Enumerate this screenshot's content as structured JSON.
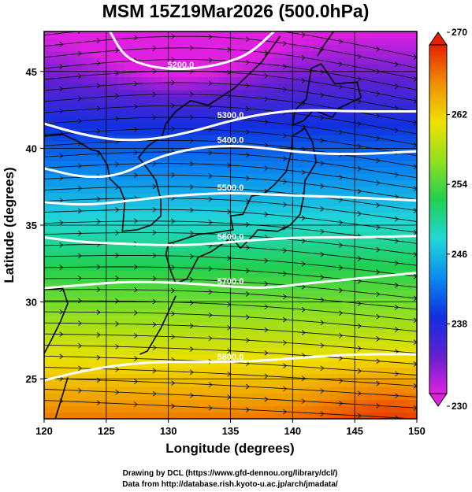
{
  "chart_data": {
    "type": "heatmap",
    "title": "MSM 15Z19Mar2026 (500.0hPa)",
    "xlabel": "Longitude (degrees)",
    "ylabel": "Latitude  (degrees)",
    "xlim": [
      120,
      150
    ],
    "ylim": [
      22.4,
      47.6
    ],
    "x_ticks": [
      120,
      125,
      130,
      135,
      140,
      145,
      150
    ],
    "y_ticks": [
      25,
      30,
      35,
      40,
      45
    ],
    "grid": true,
    "colorbar": {
      "range": [
        230,
        270
      ],
      "ticks": [
        230,
        238,
        246,
        254,
        262,
        270
      ],
      "palette": [
        "#e020e0",
        "#6020d0",
        "#1030e0",
        "#0a8cf0",
        "#20d8d8",
        "#20d050",
        "#90e020",
        "#f0e000",
        "#f09000",
        "#e82000"
      ]
    },
    "contours": [
      {
        "label": "5200.0",
        "points": [
          [
            125.3,
            47.6
          ],
          [
            126.5,
            45.9
          ],
          [
            128.5,
            45.3
          ],
          [
            131,
            45.1
          ],
          [
            134,
            45.4
          ],
          [
            136.5,
            46.1
          ],
          [
            138.5,
            47.6
          ]
        ]
      },
      {
        "label": "5300.0",
        "points": [
          [
            120,
            41.6
          ],
          [
            123,
            40.9
          ],
          [
            126,
            40.5
          ],
          [
            129,
            40.6
          ],
          [
            132,
            41.1
          ],
          [
            135,
            41.8
          ],
          [
            138,
            42.3
          ],
          [
            141,
            42.5
          ],
          [
            145,
            42.4
          ],
          [
            150,
            42.4
          ]
        ]
      },
      {
        "label": "5400.0",
        "points": [
          [
            120,
            38.7
          ],
          [
            123,
            38.1
          ],
          [
            126,
            38.2
          ],
          [
            129,
            39.4
          ],
          [
            132,
            40.0
          ],
          [
            135,
            40.2
          ],
          [
            138,
            40.0
          ],
          [
            141,
            39.7
          ],
          [
            145,
            39.6
          ],
          [
            150,
            39.8
          ]
        ]
      },
      {
        "label": "5500.0",
        "points": [
          [
            120,
            36.5
          ],
          [
            123,
            36.3
          ],
          [
            126,
            36.5
          ],
          [
            129,
            36.8
          ],
          [
            132,
            37.0
          ],
          [
            135,
            37.1
          ],
          [
            138,
            37.0
          ],
          [
            141,
            36.9
          ],
          [
            145,
            36.8
          ],
          [
            150,
            36.6
          ]
        ]
      },
      {
        "label": "5600.0",
        "points": [
          [
            120,
            34.2
          ],
          [
            123,
            33.9
          ],
          [
            126,
            33.8
          ],
          [
            129,
            33.7
          ],
          [
            132,
            33.7
          ],
          [
            135,
            33.9
          ],
          [
            138,
            34.1
          ],
          [
            141,
            34.2
          ],
          [
            145,
            34.2
          ],
          [
            150,
            34.3
          ]
        ]
      },
      {
        "label": "5700.0",
        "points": [
          [
            120,
            30.9
          ],
          [
            123,
            31.1
          ],
          [
            126,
            31.3
          ],
          [
            129,
            31.3
          ],
          [
            132,
            31.2
          ],
          [
            135,
            31.0
          ],
          [
            138,
            30.9
          ],
          [
            141,
            31.2
          ],
          [
            145,
            31.5
          ],
          [
            150,
            31.9
          ]
        ]
      },
      {
        "label": "5800.0",
        "points": [
          [
            120,
            24.9
          ],
          [
            123,
            25.5
          ],
          [
            126,
            25.9
          ],
          [
            129,
            26.1
          ],
          [
            132,
            26.1
          ],
          [
            135,
            26.1
          ],
          [
            138,
            26.2
          ],
          [
            141,
            26.4
          ],
          [
            145,
            26.6
          ],
          [
            150,
            26.6
          ]
        ]
      }
    ],
    "annotations": [
      "Drawing by DCL (https://www.gfd-dennou.org/library/dcl/)",
      "Data from http://database.rish.kyoto-u.ac.jp/arch/jmadata/"
    ]
  }
}
